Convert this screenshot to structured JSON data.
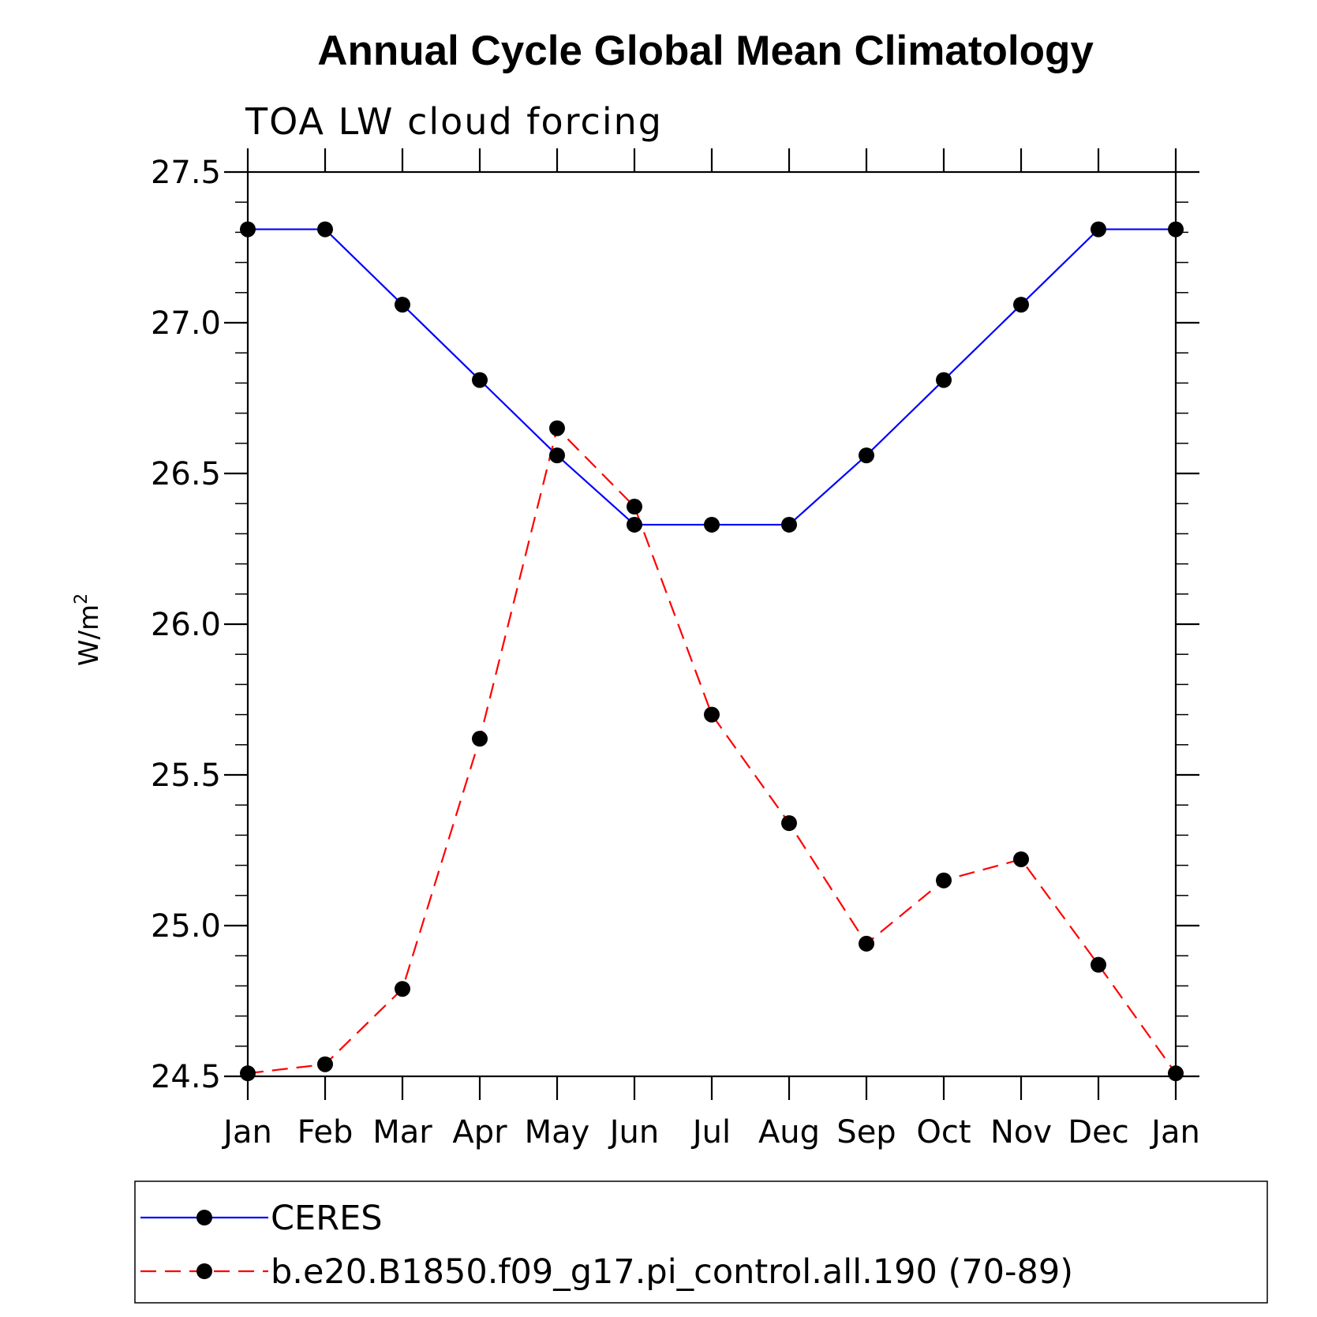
{
  "chart_data": {
    "type": "line",
    "title": "Annual Cycle Global Mean Climatology",
    "subtitle": "TOA LW cloud forcing",
    "xlabel": "",
    "ylabel": "W/m",
    "ylabel_superscript": "2",
    "categories": [
      "Jan",
      "Feb",
      "Mar",
      "Apr",
      "May",
      "Jun",
      "Jul",
      "Aug",
      "Sep",
      "Oct",
      "Nov",
      "Dec",
      "Jan"
    ],
    "ylim": [
      24.5,
      27.5
    ],
    "yticks": [
      24.5,
      25.0,
      25.5,
      26.0,
      26.5,
      27.0,
      27.5
    ],
    "ytick_labels": [
      "24.5",
      "25.0",
      "25.5",
      "26.0",
      "26.5",
      "27.0",
      "27.5"
    ],
    "y_minor_step": 0.1,
    "grid": false,
    "legend_position": "bottom",
    "series": [
      {
        "name": "CERES",
        "color": "#0000ff",
        "dash": "solid",
        "marker": "filled-circle",
        "values": [
          27.31,
          27.31,
          27.06,
          26.81,
          26.56,
          26.33,
          26.33,
          26.33,
          26.56,
          26.81,
          27.06,
          27.31,
          27.31
        ]
      },
      {
        "name": "b.e20.B1850.f09_g17.pi_control.all.190 (70-89)",
        "color": "#ff0000",
        "dash": "dashed",
        "marker": "filled-circle",
        "values": [
          24.51,
          24.54,
          24.79,
          25.62,
          26.65,
          26.39,
          25.7,
          25.34,
          24.94,
          25.15,
          25.22,
          24.87,
          24.51
        ]
      }
    ]
  }
}
